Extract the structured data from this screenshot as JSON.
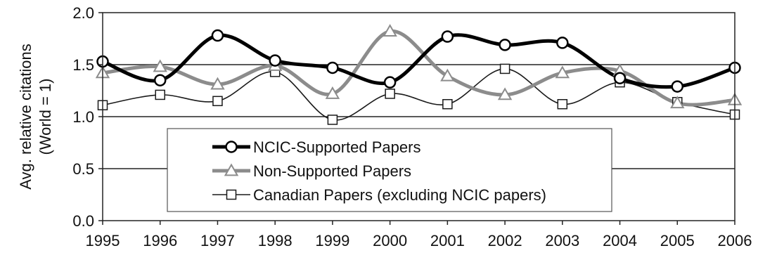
{
  "chart_data": {
    "type": "line",
    "title": "",
    "xlabel": "",
    "ylabel_lines": [
      "Avg. relative citations",
      "(World = 1)"
    ],
    "x": [
      "1995",
      "1996",
      "1997",
      "1998",
      "1999",
      "2000",
      "2001",
      "2002",
      "2003",
      "2004",
      "2005",
      "2006"
    ],
    "ylim": [
      0,
      2.0
    ],
    "yticks": [
      "0.0",
      "0.5",
      "1.0",
      "1.5",
      "2.0"
    ],
    "grid": true,
    "smooth": true,
    "legend_position": "bottom-center inside",
    "series": [
      {
        "name": "NCIC-Supported Papers",
        "values": [
          1.53,
          1.35,
          1.78,
          1.54,
          1.47,
          1.33,
          1.77,
          1.69,
          1.71,
          1.37,
          1.29,
          1.47
        ],
        "color": "#000000",
        "marker": "circle",
        "stroke_style": "thick"
      },
      {
        "name": "Non-Supported Papers",
        "values": [
          1.42,
          1.48,
          1.31,
          1.49,
          1.22,
          1.82,
          1.39,
          1.21,
          1.42,
          1.44,
          1.13,
          1.16
        ],
        "color": "#8c8c8c",
        "marker": "triangle",
        "stroke_style": "thick"
      },
      {
        "name": "Canadian Papers (excluding NCIC papers)",
        "values": [
          1.11,
          1.21,
          1.15,
          1.43,
          0.97,
          1.22,
          1.12,
          1.46,
          1.12,
          1.33,
          1.14,
          1.02
        ],
        "color": "#1a1a1a",
        "marker": "square",
        "stroke_style": "thin"
      }
    ]
  }
}
